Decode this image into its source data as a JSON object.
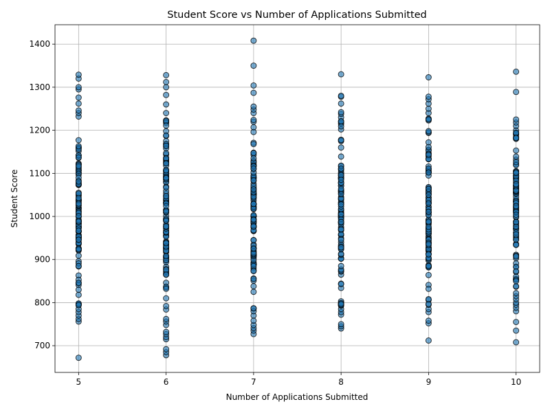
{
  "chart_data": {
    "type": "scatter",
    "title": "Student Score vs Number of Applications Submitted",
    "xlabel": "Number of Applications Submitted",
    "ylabel": "Student Score",
    "xlim": [
      4.73,
      10.27
    ],
    "ylim": [
      638,
      1445
    ],
    "x_ticks": [
      5,
      6,
      7,
      8,
      9,
      10
    ],
    "y_ticks": [
      700,
      800,
      900,
      1000,
      1100,
      1200,
      1300,
      1400
    ],
    "grid": true,
    "legend": "none",
    "marker_color": "#1f77b4",
    "marker_edge_color": "#000000",
    "marker_alpha": 0.6,
    "series": [
      {
        "x_values": [
          5,
          6,
          7,
          8,
          9,
          10
        ],
        "groups": [
          {
            "x": 5,
            "outliers": [
              672,
              756,
              762,
              770,
              778,
              785,
              1232,
              1240,
              1246,
              1262,
              1276,
              1295,
              1300,
              1320,
              1329
            ],
            "dense_range": [
              790,
              1225
            ],
            "dense_count": 110
          },
          {
            "x": 6,
            "outliers": [
              678,
              685,
              692,
              715,
              720,
              727,
              732,
              748,
              756,
              762,
              1240,
              1260,
              1282,
              1300,
              1312,
              1328
            ],
            "dense_range": [
              770,
              1235
            ],
            "dense_count": 115
          },
          {
            "x": 7,
            "outliers": [
              727,
              735,
              741,
              748,
              758,
              770,
              1240,
              1248,
              1255,
              1287,
              1304,
              1350,
              1408
            ],
            "dense_range": [
              780,
              1235
            ],
            "dense_count": 115
          },
          {
            "x": 8,
            "outliers": [
              740,
              745,
              750,
              772,
              778,
              785,
              1230,
              1238,
              1242,
              1262,
              1278,
              1280,
              1330
            ],
            "dense_range": [
              792,
              1222
            ],
            "dense_count": 110
          },
          {
            "x": 9,
            "outliers": [
              712,
              752,
              758,
              778,
              785,
              1240,
              1250,
              1262,
              1272,
              1278,
              1323
            ],
            "dense_range": [
              795,
              1232
            ],
            "dense_count": 110
          },
          {
            "x": 10,
            "outliers": [
              708,
              735,
              755,
              780,
              788,
              795,
              800,
              808,
              815,
              822,
              1200,
              1210,
              1218,
              1225,
              1289,
              1336
            ],
            "dense_range": [
              828,
              1195
            ],
            "dense_count": 105
          }
        ]
      }
    ]
  }
}
